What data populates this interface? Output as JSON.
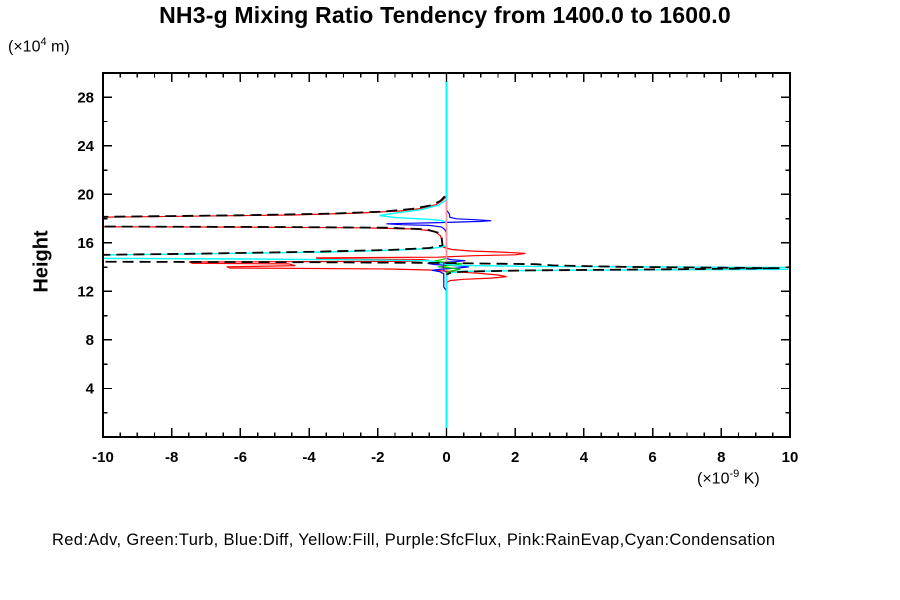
{
  "title": "NH3-g Mixing Ratio Tendency from 1400.0 to 1600.0",
  "legend": "Red:Adv, Green:Turb, Blue:Diff, Yellow:Fill, Purple:SfcFlux, Pink:RainEvap,Cyan:Condensation",
  "y_axis": {
    "label": "Height",
    "unit_prefix": "(×10",
    "unit_exp": "4",
    "unit_suffix": " m)",
    "range": [
      0,
      30
    ],
    "major_ticks": [
      4,
      8,
      12,
      16,
      20,
      24,
      28
    ],
    "minor_step": 2
  },
  "x_axis": {
    "unit_prefix": "(×10",
    "unit_exp": "-9",
    "unit_suffix": " K)",
    "range": [
      -10,
      10
    ],
    "major_ticks": [
      -10,
      -8,
      -6,
      -4,
      -2,
      0,
      2,
      4,
      6,
      8,
      10
    ],
    "minor_step": 0.5
  },
  "chart_data": {
    "type": "line",
    "title": "NH3-g Mixing Ratio Tendency from 1400.0 to 1600.0",
    "xlabel": "(x10^-9 K)",
    "ylabel": "Height (x10^4 m)",
    "xlim": [
      -10,
      10
    ],
    "ylim": [
      0,
      30
    ],
    "grid": false,
    "note": "vertical profiles: x = tendency value (x10^-9 K), y = height (x10^4 m); spikes reaching ±10.5 are clipped at the axis box",
    "series": [
      {
        "name": "Fill",
        "color": "#ffff00",
        "dash": null,
        "width": 1.2,
        "points": [
          [
            0,
            30
          ],
          [
            0,
            0
          ]
        ]
      },
      {
        "name": "Adv",
        "color": "#ff0000",
        "dash": null,
        "width": 1.2,
        "points": [
          [
            0,
            30
          ],
          [
            0,
            19.85
          ],
          [
            -0.12,
            19.5
          ],
          [
            -0.3,
            19.15
          ],
          [
            -0.7,
            18.85
          ],
          [
            -1.4,
            18.62
          ],
          [
            -2.6,
            18.45
          ],
          [
            -4.5,
            18.3
          ],
          [
            -7.5,
            18.2
          ],
          [
            -10.5,
            18.1
          ],
          [
            -10.5,
            17.33
          ],
          [
            -6,
            17.3
          ],
          [
            -2.5,
            17.24
          ],
          [
            -0.9,
            17.14
          ],
          [
            -0.35,
            16.95
          ],
          [
            -0.18,
            16.6
          ],
          [
            -0.12,
            16.1
          ],
          [
            -0.1,
            15.65
          ],
          [
            0.15,
            15.45
          ],
          [
            0.7,
            15.33
          ],
          [
            1.6,
            15.24
          ],
          [
            2.3,
            15.13
          ],
          [
            2.0,
            15.02
          ],
          [
            0.8,
            14.94
          ],
          [
            0.15,
            14.87
          ],
          [
            -0.25,
            14.82
          ],
          [
            -3.8,
            14.77
          ],
          [
            -3.7,
            14.68
          ],
          [
            -0.7,
            14.62
          ],
          [
            -0.5,
            14.55
          ],
          [
            -1.0,
            14.48
          ],
          [
            -7.5,
            14.42
          ],
          [
            -7.4,
            14.32
          ],
          [
            -4.6,
            14.27
          ],
          [
            -4.4,
            14.12
          ],
          [
            -6.4,
            14.03
          ],
          [
            -6.3,
            13.93
          ],
          [
            -1.7,
            13.85
          ],
          [
            -0.5,
            13.76
          ],
          [
            0.2,
            13.62
          ],
          [
            0.9,
            13.5
          ],
          [
            1.5,
            13.35
          ],
          [
            1.75,
            13.22
          ],
          [
            1.3,
            13.1
          ],
          [
            0.5,
            13.0
          ],
          [
            0.12,
            12.9
          ],
          [
            0,
            12.75
          ],
          [
            0,
            0
          ]
        ]
      },
      {
        "name": "Diff",
        "color": "#0000ff",
        "dash": null,
        "width": 1.2,
        "points": [
          [
            0,
            30
          ],
          [
            0,
            18.7
          ],
          [
            0.08,
            18.4
          ],
          [
            0.1,
            18.1
          ],
          [
            0.3,
            17.98
          ],
          [
            0.9,
            17.9
          ],
          [
            1.3,
            17.83
          ],
          [
            1.0,
            17.77
          ],
          [
            0.4,
            17.72
          ],
          [
            -0.2,
            17.67
          ],
          [
            -1.0,
            17.62
          ],
          [
            -1.75,
            17.57
          ],
          [
            -1.3,
            17.5
          ],
          [
            -0.5,
            17.44
          ],
          [
            -0.15,
            17.32
          ],
          [
            -0.05,
            17.1
          ],
          [
            0,
            16.8
          ],
          [
            0,
            14.72
          ],
          [
            0.12,
            14.62
          ],
          [
            0.55,
            14.53
          ],
          [
            0.25,
            14.45
          ],
          [
            -0.25,
            14.39
          ],
          [
            -0.55,
            14.31
          ],
          [
            -0.35,
            14.22
          ],
          [
            0.25,
            14.12
          ],
          [
            0.65,
            14.02
          ],
          [
            0.35,
            13.93
          ],
          [
            -0.15,
            13.84
          ],
          [
            -0.42,
            13.74
          ],
          [
            -0.2,
            13.63
          ],
          [
            -0.08,
            13.45
          ],
          [
            -0.08,
            12.35
          ],
          [
            0,
            12.05
          ],
          [
            0,
            0
          ]
        ]
      },
      {
        "name": "Turb",
        "color": "#00cc00",
        "dash": null,
        "width": 1.2,
        "points": [
          [
            0,
            30
          ],
          [
            0,
            14.72
          ],
          [
            -0.18,
            14.6
          ],
          [
            -0.38,
            14.48
          ],
          [
            0.18,
            14.37
          ],
          [
            0.45,
            14.27
          ],
          [
            0.2,
            14.17
          ],
          [
            -0.25,
            14.03
          ],
          [
            0.12,
            13.93
          ],
          [
            0.4,
            13.81
          ],
          [
            0.12,
            13.67
          ],
          [
            0,
            13.53
          ],
          [
            0,
            0
          ]
        ]
      },
      {
        "name": "Condensation",
        "color": "#00ffff",
        "dash": null,
        "width": 1.4,
        "points": [
          [
            0,
            30
          ],
          [
            0,
            19.55
          ],
          [
            -0.25,
            19.1
          ],
          [
            -0.8,
            18.7
          ],
          [
            -1.5,
            18.45
          ],
          [
            -1.95,
            18.25
          ],
          [
            -1.5,
            18.08
          ],
          [
            -0.6,
            17.95
          ],
          [
            -0.15,
            17.85
          ],
          [
            0,
            17.7
          ],
          [
            0,
            15.75
          ],
          [
            -0.4,
            15.55
          ],
          [
            -1.4,
            15.4
          ],
          [
            -3.5,
            15.25
          ],
          [
            -7,
            15.1
          ],
          [
            -10.5,
            14.98
          ],
          [
            -10.5,
            14.73
          ],
          [
            -6,
            14.67
          ],
          [
            -2.2,
            14.6
          ],
          [
            -0.5,
            14.52
          ],
          [
            -0.25,
            14.4
          ],
          [
            -0.12,
            14.25
          ],
          [
            0.3,
            14.14
          ],
          [
            2.5,
            14.06
          ],
          [
            9.93,
            13.97
          ],
          [
            9.93,
            13.82
          ],
          [
            2.8,
            13.74
          ],
          [
            0.4,
            13.64
          ],
          [
            0.08,
            13.52
          ],
          [
            0,
            13.42
          ],
          [
            0,
            0
          ]
        ]
      },
      {
        "name": "RainEvap",
        "color": "#ff8f9e",
        "dash": null,
        "width": 1.4,
        "points": [
          [
            0,
            19.5
          ],
          [
            0,
            14.4
          ]
        ]
      },
      {
        "name": "SfcFlux",
        "color": "#9400d3",
        "dash": null,
        "width": 1.4,
        "points": [
          [
            0,
            14.4
          ],
          [
            -0.08,
            14.32
          ],
          [
            -0.1,
            14.0
          ],
          [
            -0.08,
            13.72
          ],
          [
            0,
            13.58
          ]
        ]
      },
      {
        "name": "Total",
        "color": "#000000",
        "dash": "11 6",
        "width": 1.8,
        "points": [
          [
            -0.05,
            19.85
          ],
          [
            -0.18,
            19.45
          ],
          [
            -0.45,
            19.1
          ],
          [
            -1.0,
            18.8
          ],
          [
            -1.9,
            18.57
          ],
          [
            -3.4,
            18.4
          ],
          [
            -6,
            18.27
          ],
          [
            -10.5,
            18.13
          ],
          [
            -10.5,
            17.35
          ],
          [
            -5,
            17.31
          ],
          [
            -1.8,
            17.25
          ],
          [
            -0.6,
            17.12
          ],
          [
            -0.25,
            16.85
          ],
          [
            -0.14,
            16.4
          ],
          [
            -0.12,
            15.8
          ],
          [
            -0.5,
            15.58
          ],
          [
            -1.6,
            15.42
          ],
          [
            -3.8,
            15.27
          ],
          [
            -7.5,
            15.1
          ],
          [
            -10.5,
            15.0
          ],
          [
            -10.5,
            14.45
          ],
          [
            -4,
            14.41
          ],
          [
            -0.8,
            14.36
          ],
          [
            0.8,
            14.31
          ],
          [
            2.6,
            14.24
          ],
          [
            3.1,
            14.14
          ],
          [
            5.2,
            14.02
          ],
          [
            9.7,
            13.91
          ],
          [
            6.5,
            13.82
          ],
          [
            2.4,
            13.73
          ],
          [
            0.5,
            13.63
          ],
          [
            0.1,
            13.52
          ],
          [
            0,
            13.38
          ]
        ]
      }
    ]
  }
}
